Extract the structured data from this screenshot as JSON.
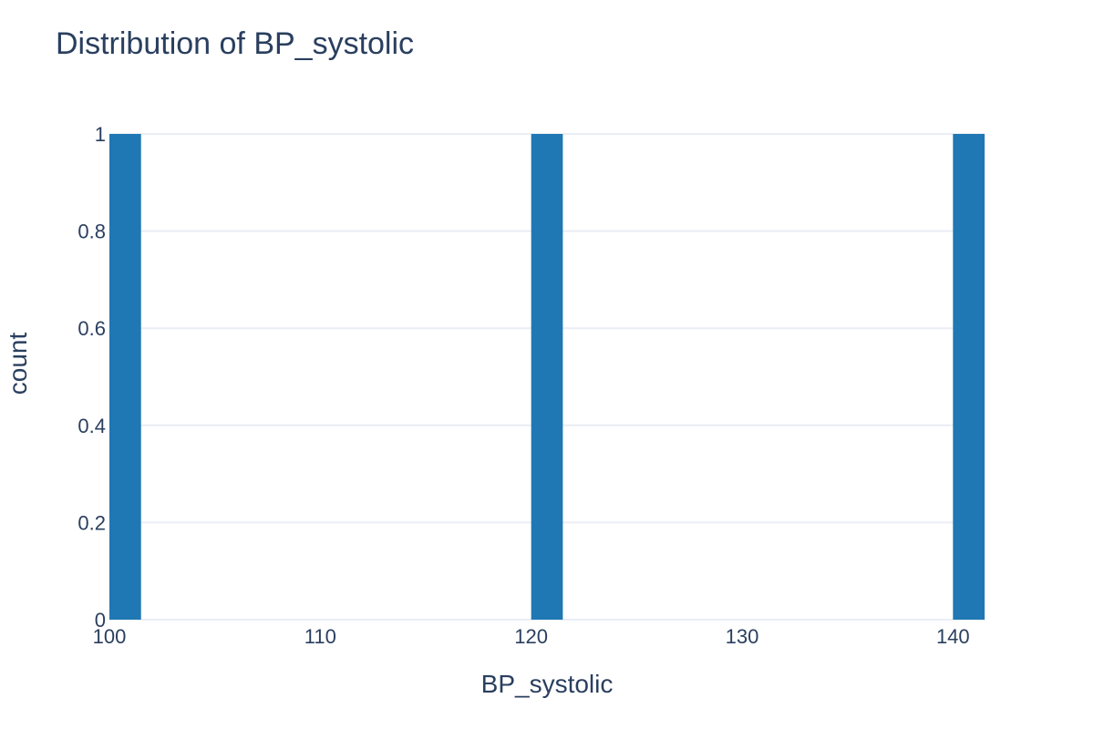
{
  "chart_data": {
    "type": "bar",
    "title": "Distribution of BP_systolic",
    "xlabel": "BP_systolic",
    "ylabel": "count",
    "xlim": [
      100,
      141.5
    ],
    "ylim": [
      0,
      1
    ],
    "x_ticks": [
      100,
      110,
      120,
      130,
      140
    ],
    "y_ticks": [
      0,
      0.2,
      0.4,
      0.6,
      0.8,
      1
    ],
    "bins": [
      {
        "start": 100,
        "end": 101.5,
        "count": 1
      },
      {
        "start": 120,
        "end": 121.5,
        "count": 1
      },
      {
        "start": 140,
        "end": 141.5,
        "count": 1
      }
    ],
    "grid": true,
    "colors": {
      "bar": "#1f77b4",
      "grid": "#e9eef5",
      "text": "#2a3f5f",
      "background": "#ffffff"
    }
  }
}
